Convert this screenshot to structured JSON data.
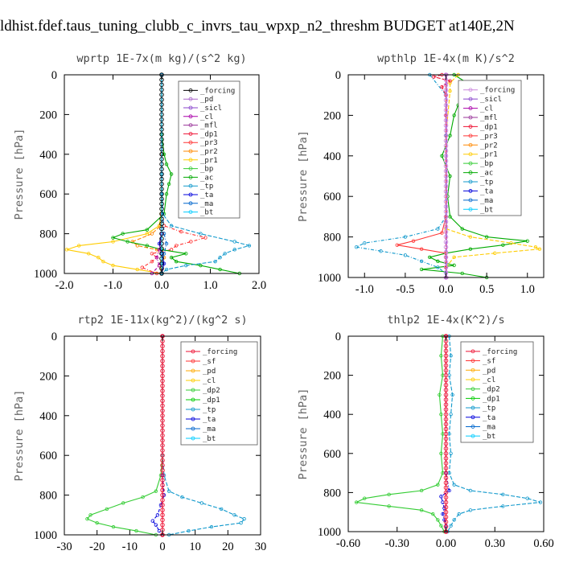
{
  "title": "ldhist.fdef.taus_tuning_clubb_c_invrs_tau_wpxp_n2_threshm  BUDGET at140E,2N",
  "chart_data": [
    {
      "type": "line",
      "title": "wprtp  1E-7x(m kg)/(s^2 kg)",
      "ylabel": "Pressure [hPa]",
      "xlim": [
        -2.0,
        2.0
      ],
      "ylim": [
        0,
        1000
      ],
      "xticks": [
        "-2.0",
        "-1.0",
        "0.0",
        "1.0",
        "2.0"
      ],
      "xtick_values": [
        -2.0,
        -1.0,
        0.0,
        1.0,
        2.0
      ],
      "yticks": [
        "0",
        "200",
        "400",
        "600",
        "800",
        "1000"
      ],
      "ytick_values": [
        0,
        200,
        400,
        600,
        800,
        1000
      ],
      "legend_position": "top-right",
      "legend": [
        "_forcing",
        "_pd",
        "_sicl",
        "_cl",
        "_mfl",
        "_dp1",
        "_pr3",
        "_pr2",
        "_pr1",
        "_bp",
        "_ac",
        "_tp",
        "_ta",
        "_ma",
        "_bt"
      ],
      "legend_colors": [
        "#000000",
        "#aa66cc",
        "#8844cc",
        "#aa00aa",
        "#993399",
        "#ee1133",
        "#ff3333",
        "#ff8800",
        "#ffcc00",
        "#33cc33",
        "#00aa00",
        "#1199cc",
        "#0000dd",
        "#0066cc",
        "#00ccff"
      ],
      "series": [
        {
          "name": "_pr1",
          "color": "#ffcc00",
          "p": [
            0,
            400,
            700,
            760,
            800,
            840,
            860,
            880,
            900,
            920,
            940,
            960,
            980,
            1000
          ],
          "v": [
            0,
            0,
            -0.01,
            -0.05,
            -0.3,
            -1.0,
            -1.7,
            -1.95,
            -1.5,
            -1.3,
            -1.2,
            -1.0,
            -0.5,
            0
          ]
        },
        {
          "name": "_pr2",
          "color": "#ff8800",
          "p": [
            0,
            400,
            700,
            760,
            800,
            840,
            860,
            880,
            900,
            920,
            940,
            960,
            980,
            1000
          ],
          "v": [
            0,
            0,
            0,
            -0.02,
            -0.2,
            -0.6,
            -0.5,
            -0.1,
            0,
            0.05,
            0,
            -0.05,
            0,
            0
          ]
        },
        {
          "name": "_pr3",
          "color": "#ff3333",
          "p": [
            0,
            400,
            700,
            760,
            790,
            820,
            840,
            860,
            880,
            900,
            920,
            940,
            970,
            1000
          ],
          "v": [
            0,
            0,
            0,
            0.05,
            0.4,
            0.9,
            0.6,
            0.3,
            0.2,
            -0.2,
            -0.1,
            -0.2,
            -0.4,
            -0.1
          ]
        },
        {
          "name": "_ac",
          "color": "#00aa00",
          "p": [
            0,
            300,
            400,
            450,
            500,
            550,
            600,
            700,
            780,
            800,
            820,
            840,
            860,
            880,
            900,
            920,
            940,
            960,
            980,
            1000
          ],
          "v": [
            0,
            0,
            0.05,
            0.1,
            0.2,
            0.15,
            0.1,
            0.05,
            -0.3,
            -0.8,
            -1.0,
            -0.7,
            -0.3,
            0.0,
            0.5,
            0.2,
            0.3,
            0.8,
            1.2,
            1.6
          ]
        },
        {
          "name": "_tp",
          "color": "#1199cc",
          "p": [
            0,
            500,
            700,
            760,
            800,
            840,
            860,
            880,
            900,
            920,
            940,
            960,
            980,
            1000
          ],
          "v": [
            0,
            0,
            0.02,
            0.2,
            0.8,
            1.5,
            1.8,
            1.5,
            1.3,
            1.2,
            1.1,
            0.5,
            0.1,
            0
          ]
        },
        {
          "name": "_ma",
          "color": "#0066cc",
          "p": [
            0,
            600,
            800,
            850,
            900,
            950,
            1000
          ],
          "v": [
            0,
            0,
            0.05,
            0.1,
            0.05,
            0,
            0
          ]
        },
        {
          "name": "_ta",
          "color": "#0000dd",
          "p": [
            0,
            800,
            850,
            900,
            950,
            1000
          ],
          "v": [
            0,
            0,
            -0.05,
            0,
            0.05,
            0
          ]
        },
        {
          "name": "_forcing",
          "color": "#000000",
          "p": [
            0,
            1000
          ],
          "v": [
            0,
            0
          ]
        },
        {
          "name": "_cl",
          "color": "#aa00aa",
          "p": [
            0,
            800,
            880,
            920,
            960,
            1000
          ],
          "v": [
            0,
            0,
            -0.05,
            -0.1,
            -0.05,
            -0.2
          ]
        },
        {
          "name": "_bt",
          "color": "#00ccff",
          "p": [
            0,
            1000
          ],
          "v": [
            0,
            0
          ]
        }
      ]
    },
    {
      "type": "line",
      "title": "wpthlp  1E-4x(m K)/s^2",
      "ylabel": "Pressure [hPa]",
      "xlim": [
        -1.2,
        1.2
      ],
      "ylim": [
        0,
        1000
      ],
      "xticks": [
        "-1.0",
        "-0.5",
        "0.0",
        "0.5",
        "1.0"
      ],
      "xtick_values": [
        -1.0,
        -0.5,
        0.0,
        0.5,
        1.0
      ],
      "yticks": [
        "0",
        "200",
        "400",
        "600",
        "800",
        "1000"
      ],
      "ytick_values": [
        0,
        200,
        400,
        600,
        800,
        1000
      ],
      "legend_position": "top-right",
      "legend": [
        "_forcing",
        "_sicl",
        "_cl",
        "_mfl",
        "_dp1",
        "_pr3",
        "_pr2",
        "_pr1",
        "_bp",
        "_ac",
        "_tp",
        "_ta",
        "_ma",
        "_bt"
      ],
      "legend_colors": [
        "#cc88dd",
        "#8844cc",
        "#aa00aa",
        "#993399",
        "#ee1133",
        "#ff3333",
        "#ff8800",
        "#ffcc00",
        "#33cc33",
        "#00aa00",
        "#1199cc",
        "#0000dd",
        "#0066cc",
        "#00ccff"
      ],
      "series": [
        {
          "name": "_ac",
          "color": "#00aa00",
          "p": [
            0,
            50,
            100,
            150,
            200,
            300,
            400,
            500,
            600,
            700,
            760,
            800,
            820,
            840,
            860,
            880,
            900,
            920,
            940,
            960,
            980,
            1000
          ],
          "v": [
            0.1,
            0.3,
            0.25,
            0.15,
            0.1,
            0.05,
            -0.05,
            0.05,
            0.02,
            0.05,
            0.2,
            0.5,
            1.0,
            0.7,
            0.3,
            0,
            -0.2,
            -0.1,
            0.1,
            -0.3,
            0.2,
            0.5
          ]
        },
        {
          "name": "_pr1",
          "color": "#ffcc00",
          "p": [
            0,
            40,
            80,
            300,
            760,
            800,
            830,
            850,
            860,
            880,
            900,
            950,
            1000
          ],
          "v": [
            0.15,
            0.05,
            0.05,
            0,
            0,
            0.3,
            0.8,
            1.1,
            1.15,
            0.6,
            0.1,
            0,
            0
          ]
        },
        {
          "name": "_tp",
          "color": "#1199cc",
          "p": [
            0,
            100,
            300,
            700,
            760,
            800,
            830,
            850,
            870,
            890,
            920,
            950,
            980,
            1000
          ],
          "v": [
            -0.2,
            0,
            0,
            0,
            -0.1,
            -0.5,
            -1.0,
            -1.1,
            -0.8,
            -0.5,
            -0.3,
            -0.1,
            0,
            0
          ]
        },
        {
          "name": "_pr3",
          "color": "#ff3333",
          "p": [
            0,
            700,
            780,
            820,
            840,
            860,
            880,
            900,
            950,
            1000
          ],
          "v": [
            0,
            0,
            -0.05,
            -0.4,
            -0.6,
            -0.3,
            0,
            0,
            0,
            0
          ]
        },
        {
          "name": "_dp1",
          "color": "#ee1133",
          "p": [
            0,
            10,
            30,
            60,
            100,
            200,
            1000
          ],
          "v": [
            -0.05,
            -0.15,
            0.05,
            -0.05,
            0,
            0,
            0
          ]
        },
        {
          "name": "_sicl",
          "color": "#8844cc",
          "p": [
            0,
            1000
          ],
          "v": [
            0,
            0
          ]
        },
        {
          "name": "_forcing",
          "color": "#cc88dd",
          "p": [
            0,
            1000
          ],
          "v": [
            0.01,
            0.01
          ]
        }
      ]
    },
    {
      "type": "line",
      "title": "rtp2  1E-11x(kg^2)/(kg^2 s)",
      "ylabel": "Pressure [hPa]",
      "xlim": [
        -30,
        30
      ],
      "ylim": [
        0,
        1000
      ],
      "xticks": [
        "-30",
        "-20",
        "-10",
        "0",
        "10",
        "20",
        "30"
      ],
      "xtick_values": [
        -30,
        -20,
        -10,
        0,
        10,
        20,
        30
      ],
      "yticks": [
        "0",
        "200",
        "400",
        "600",
        "800",
        "1000"
      ],
      "ytick_values": [
        0,
        200,
        400,
        600,
        800,
        1000
      ],
      "legend_position": "top-right",
      "legend": [
        "_forcing",
        "_sf",
        "_pd",
        "_cl",
        "_dp2",
        "_dp1",
        "_tp",
        "_ta",
        "_ma",
        "_bt"
      ],
      "legend_colors": [
        "#ee1133",
        "#ff3333",
        "#ffaa00",
        "#ffcc00",
        "#33cc33",
        "#00cc00",
        "#1199cc",
        "#0000dd",
        "#0066cc",
        "#00ccff"
      ],
      "series": [
        {
          "name": "_dp1",
          "color": "#33cc33",
          "p": [
            0,
            600,
            700,
            780,
            810,
            840,
            870,
            900,
            920,
            940,
            960,
            980,
            1000
          ],
          "v": [
            0,
            0,
            -0.5,
            -2,
            -6,
            -12,
            -17,
            -22,
            -23,
            -20,
            -15,
            -8,
            -2
          ]
        },
        {
          "name": "_tp",
          "color": "#1199cc",
          "p": [
            0,
            600,
            700,
            780,
            810,
            840,
            870,
            900,
            920,
            940,
            960,
            980,
            1000
          ],
          "v": [
            0,
            0,
            0.5,
            2,
            6,
            12,
            18,
            22,
            25,
            24,
            15,
            8,
            2
          ]
        },
        {
          "name": "_ta",
          "color": "#0000dd",
          "p": [
            0,
            700,
            800,
            850,
            900,
            930,
            950,
            980,
            1000
          ],
          "v": [
            0,
            0,
            0.5,
            -0.5,
            -1.5,
            -3,
            -2,
            -1,
            0
          ]
        },
        {
          "name": "_forcing",
          "color": "#ee1133",
          "p": [
            0,
            1000
          ],
          "v": [
            0,
            0
          ]
        }
      ]
    },
    {
      "type": "line",
      "title": "thlp2  1E-4x(K^2)/s",
      "ylabel": "Pressure [hPa]",
      "xlim": [
        -0.6,
        0.6
      ],
      "ylim": [
        0,
        1000
      ],
      "xticks": [
        "-0.60",
        "-0.30",
        "0.00",
        "0.30",
        "0.60"
      ],
      "xtick_values": [
        -0.6,
        -0.3,
        0.0,
        0.3,
        0.6
      ],
      "yticks": [
        "0",
        "200",
        "400",
        "600",
        "800",
        "1000"
      ],
      "ytick_values": [
        0,
        200,
        400,
        600,
        800,
        1000
      ],
      "legend_position": "top-right",
      "legend": [
        "_forcing",
        "_sf",
        "_pd",
        "_cl",
        "_dp2",
        "_dp1",
        "_tp",
        "_ta",
        "_ma",
        "_bt"
      ],
      "legend_colors": [
        "#ee1133",
        "#ff3333",
        "#ffaa00",
        "#ffcc00",
        "#33cc33",
        "#00cc00",
        "#1199cc",
        "#0000dd",
        "#0066cc",
        "#00ccff"
      ],
      "series": [
        {
          "name": "_dp1",
          "color": "#33cc33",
          "p": [
            0,
            100,
            200,
            300,
            400,
            500,
            600,
            700,
            760,
            790,
            810,
            830,
            850,
            870,
            890,
            910,
            940,
            970,
            1000
          ],
          "v": [
            -0.02,
            -0.03,
            -0.02,
            -0.04,
            -0.03,
            -0.02,
            -0.03,
            -0.02,
            -0.05,
            -0.15,
            -0.35,
            -0.5,
            -0.55,
            -0.35,
            -0.15,
            -0.08,
            -0.05,
            -0.03,
            -0.01
          ]
        },
        {
          "name": "_tp",
          "color": "#1199cc",
          "p": [
            0,
            100,
            200,
            300,
            400,
            500,
            600,
            700,
            760,
            790,
            810,
            830,
            850,
            870,
            890,
            910,
            940,
            970,
            1000
          ],
          "v": [
            0.02,
            0.03,
            0.02,
            0.04,
            0.03,
            0.02,
            0.03,
            0.02,
            0.05,
            0.15,
            0.35,
            0.5,
            0.58,
            0.35,
            0.15,
            0.08,
            0.05,
            0.03,
            0.01
          ]
        },
        {
          "name": "_ta",
          "color": "#0000dd",
          "p": [
            0,
            700,
            790,
            820,
            850,
            880,
            910,
            940,
            970,
            1000
          ],
          "v": [
            0,
            0,
            0.02,
            -0.03,
            -0.02,
            -0.01,
            -0.02,
            -0.01,
            0,
            0
          ]
        },
        {
          "name": "_forcing",
          "color": "#ee1133",
          "p": [
            0,
            1000
          ],
          "v": [
            0,
            0
          ]
        }
      ]
    }
  ]
}
